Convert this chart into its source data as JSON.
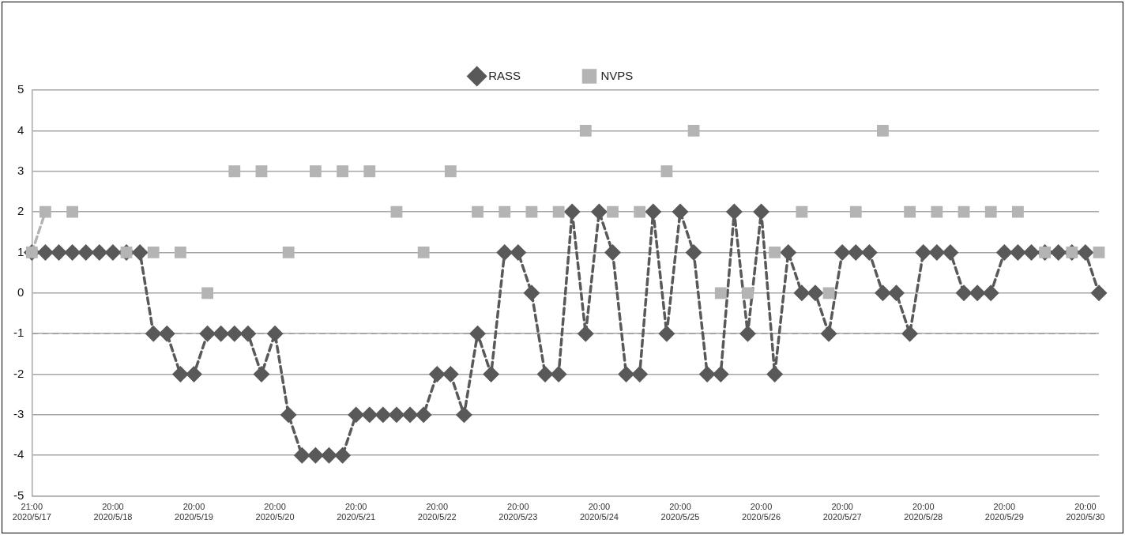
{
  "chart_data": {
    "type": "line",
    "categories": [
      "21:00\n2020/5/17",
      null,
      null,
      null,
      null,
      null,
      "20:00\n2020/5/18",
      null,
      null,
      null,
      null,
      null,
      "20:00\n2020/5/19",
      null,
      null,
      null,
      null,
      null,
      "20:00\n2020/5/20",
      null,
      null,
      null,
      null,
      null,
      "20:00\n2020/5/21",
      null,
      null,
      null,
      null,
      null,
      "20:00\n2020/5/22",
      null,
      null,
      null,
      null,
      null,
      "20:00\n2020/5/23",
      null,
      null,
      null,
      null,
      null,
      "20:00\n2020/5/24",
      null,
      null,
      null,
      null,
      null,
      "20:00\n2020/5/25",
      null,
      null,
      null,
      null,
      null,
      "20:00\n2020/5/26",
      null,
      null,
      null,
      null,
      null,
      "20:00\n2020/5/27",
      null,
      null,
      null,
      null,
      null,
      "20:00\n2020/5/28",
      null,
      null,
      null,
      null,
      null,
      "20:00\n2020/5/29",
      null,
      null,
      null,
      null,
      null,
      "20:00\n2020/5/30",
      null
    ],
    "series": [
      {
        "name": "RASS",
        "color": "#595959",
        "marker": "diamond",
        "values": [
          1,
          1,
          1,
          1,
          1,
          1,
          1,
          1,
          1,
          -1,
          -1,
          -2,
          -2,
          -1,
          -1,
          -1,
          -1,
          -2,
          -1,
          -3,
          -4,
          -4,
          -4,
          -4,
          -3,
          -3,
          -3,
          -3,
          -3,
          -3,
          -2,
          -2,
          -3,
          -1,
          -2,
          1,
          1,
          0,
          -2,
          -2,
          2,
          -1,
          2,
          1,
          -2,
          -2,
          2,
          -1,
          2,
          1,
          -2,
          -2,
          2,
          -1,
          2,
          -2,
          1,
          0,
          0,
          -1,
          1,
          1,
          1,
          0,
          0,
          -1,
          1,
          1,
          1,
          0,
          0,
          0,
          1,
          1,
          1,
          1,
          1,
          1,
          1,
          0
        ]
      },
      {
        "name": "NVPS",
        "color": "#b4b4b4",
        "marker": "square",
        "values": [
          1,
          2,
          null,
          2,
          null,
          null,
          null,
          1,
          null,
          1,
          null,
          1,
          null,
          0,
          null,
          3,
          null,
          3,
          null,
          1,
          null,
          3,
          null,
          3,
          null,
          3,
          null,
          2,
          null,
          1,
          null,
          3,
          null,
          2,
          null,
          2,
          null,
          2,
          null,
          2,
          null,
          4,
          null,
          2,
          null,
          2,
          null,
          3,
          null,
          4,
          null,
          0,
          null,
          0,
          null,
          1,
          null,
          2,
          null,
          0,
          null,
          2,
          null,
          4,
          null,
          2,
          null,
          2,
          null,
          2,
          null,
          2,
          null,
          2,
          null,
          1,
          null,
          1,
          null,
          1
        ]
      }
    ],
    "ylim": [
      -5,
      5
    ],
    "yticks": [
      -5,
      -4,
      -3,
      -2,
      -1,
      0,
      1,
      2,
      3,
      4,
      5
    ],
    "grid": "y",
    "legend": "top",
    "line_style": "dashed",
    "ref_lines": [
      {
        "axis": "y",
        "value": -1,
        "color": "#a6a6a6",
        "line_style": "dashed"
      }
    ]
  }
}
